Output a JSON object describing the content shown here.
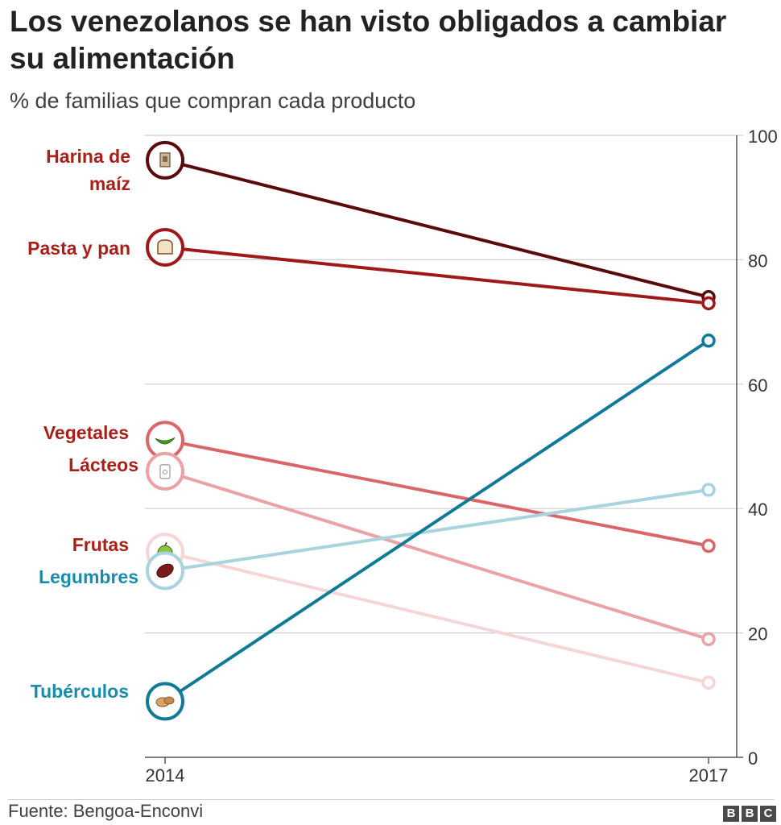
{
  "title": "Los venezolanos se han visto obligados a cambiar su alimentación",
  "subtitle": "% de familias que compran cada producto",
  "source": "Fuente: Bengoa-Enconvi",
  "logo": [
    "B",
    "B",
    "C"
  ],
  "chart_data": {
    "type": "line",
    "x": [
      "2014",
      "2017"
    ],
    "ylim": [
      0,
      100
    ],
    "yticks": [
      0,
      20,
      40,
      60,
      80,
      100
    ],
    "grid": true,
    "series": [
      {
        "name": "Harina de maíz",
        "values": [
          96,
          74
        ],
        "color": "#5a0a0a",
        "label_color": "#a8201a",
        "icon": "flour-bag-icon"
      },
      {
        "name": "Pasta y pan",
        "values": [
          82,
          73
        ],
        "color": "#9e1a1a",
        "label_color": "#a8201a",
        "icon": "bread-icon"
      },
      {
        "name": "Vegetales",
        "values": [
          51,
          34
        ],
        "color": "#d9676a",
        "label_color": "#a8201a",
        "icon": "green-pepper-icon"
      },
      {
        "name": "Lácteos",
        "values": [
          46,
          19
        ],
        "color": "#eba2a4",
        "label_color": "#a8201a",
        "icon": "milk-carton-icon"
      },
      {
        "name": "Frutas",
        "values": [
          33,
          12
        ],
        "color": "#f5d6d7",
        "label_color": "#a8201a",
        "icon": "apple-icon"
      },
      {
        "name": "Legumbres",
        "values": [
          30,
          43
        ],
        "color": "#a8d3df",
        "label_color": "#1a8cac",
        "icon": "bean-icon"
      },
      {
        "name": "Tubérculos",
        "values": [
          9,
          67
        ],
        "color": "#117a99",
        "label_color": "#1a8cac",
        "icon": "potato-icon"
      }
    ]
  }
}
